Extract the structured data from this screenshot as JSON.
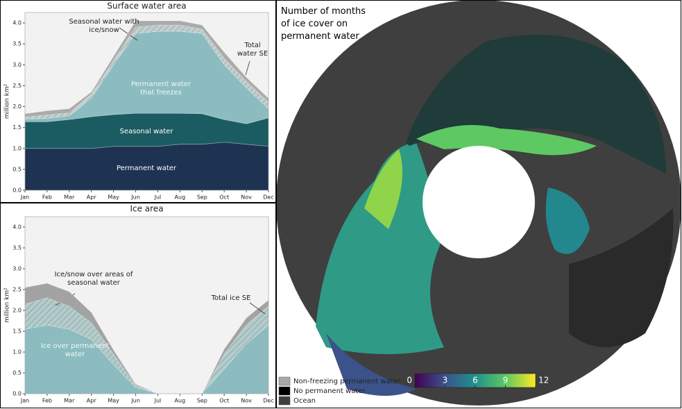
{
  "chart_data": [
    {
      "type": "area",
      "stacked": true,
      "title": "Surface water area",
      "ylabel": "million km²",
      "categories": [
        "Jan",
        "Feb",
        "Mar",
        "Apr",
        "May",
        "Jun",
        "Jul",
        "Aug",
        "Sep",
        "Oct",
        "Nov",
        "Dec"
      ],
      "ylim": [
        0,
        4.25
      ],
      "yticks": [
        {
          "value": 0,
          "label": "0.0"
        },
        0.5,
        {
          "value": 1,
          "label": "1.0"
        },
        1.5,
        {
          "value": 2,
          "label": "2.0"
        },
        2.5,
        {
          "value": 3,
          "label": "3.0"
        },
        3.5,
        {
          "value": 4,
          "label": "4.0"
        }
      ],
      "series": [
        {
          "name": "Permanent water",
          "color": "#1e3352",
          "values": [
            1.0,
            1.0,
            1.0,
            1.0,
            1.05,
            1.05,
            1.05,
            1.1,
            1.1,
            1.15,
            1.1,
            1.05
          ]
        },
        {
          "name": "Seasonal water",
          "color": "#1b5c62",
          "values": [
            0.64,
            0.64,
            0.69,
            0.76,
            0.76,
            0.79,
            0.79,
            0.74,
            0.73,
            0.54,
            0.49,
            0.68
          ]
        },
        {
          "name": "Permanent water that freezes",
          "color": "#8cbcc0",
          "values": [
            0.06,
            0.08,
            0.09,
            0.44,
            1.19,
            1.91,
            1.96,
            1.96,
            1.92,
            1.31,
            0.86,
            0.22
          ]
        },
        {
          "name": "Seasonal water with ice/snow",
          "color": "#c3cfcf",
          "hatch": true,
          "values": [
            0.05,
            0.08,
            0.07,
            0.1,
            0.1,
            0.15,
            0.15,
            0.15,
            0.1,
            0.15,
            0.15,
            0.15
          ]
        },
        {
          "name": "Total water SE",
          "color": "#ababab",
          "values": [
            0.08,
            0.1,
            0.1,
            0.05,
            0.1,
            0.15,
            0.1,
            0.1,
            0.1,
            0.15,
            0.1,
            0.1
          ]
        }
      ]
    },
    {
      "type": "area",
      "stacked": true,
      "title": "Ice area",
      "ylabel": "million km²",
      "categories": [
        "Jan",
        "Feb",
        "Mar",
        "Apr",
        "May",
        "Jun",
        "Jul",
        "Aug",
        "Sep",
        "Oct",
        "Nov",
        "Dec"
      ],
      "ylim": [
        0,
        4.25
      ],
      "yticks": [
        {
          "value": 0,
          "label": "0.0"
        },
        0.5,
        {
          "value": 1,
          "label": "1.0"
        },
        1.5,
        {
          "value": 2,
          "label": "2.0"
        },
        2.5,
        {
          "value": 3,
          "label": "3.0"
        },
        3.5,
        {
          "value": 4,
          "label": "4.0"
        }
      ],
      "series": [
        {
          "name": "Ice over permanent water",
          "color": "#8cbcc0",
          "values": [
            1.55,
            1.65,
            1.55,
            1.3,
            0.7,
            0.15,
            0,
            0,
            0,
            0.6,
            1.2,
            1.65
          ]
        },
        {
          "name": "Ice/snow over areas of seasonal water",
          "color": "#b3cbcb",
          "hatch": true,
          "values": [
            0.6,
            0.65,
            0.55,
            0.4,
            0.25,
            0.05,
            0,
            0,
            0,
            0.35,
            0.45,
            0.45
          ]
        },
        {
          "name": "Total ice SE",
          "color": "#a3a3a3",
          "values": [
            0.4,
            0.35,
            0.35,
            0.25,
            0.1,
            0.03,
            0,
            0,
            0,
            0.12,
            0.17,
            0.15
          ]
        }
      ]
    },
    {
      "type": "map",
      "title": "Number of months of ice cover on permanent water",
      "colorbar": {
        "colors": [
          "#440154",
          "#3b528b",
          "#21918c",
          "#5ec962",
          "#fde725"
        ],
        "lim": [
          0,
          12
        ],
        "ticks": [
          0,
          3,
          6,
          9,
          12
        ]
      },
      "legend": [
        {
          "name": "Non-freezing permanent water",
          "color": "#a9a9a9"
        },
        {
          "name": "No permanent water",
          "color": "#000000"
        },
        {
          "name": "Ocean",
          "color": "#3f3f3f"
        }
      ]
    }
  ]
}
